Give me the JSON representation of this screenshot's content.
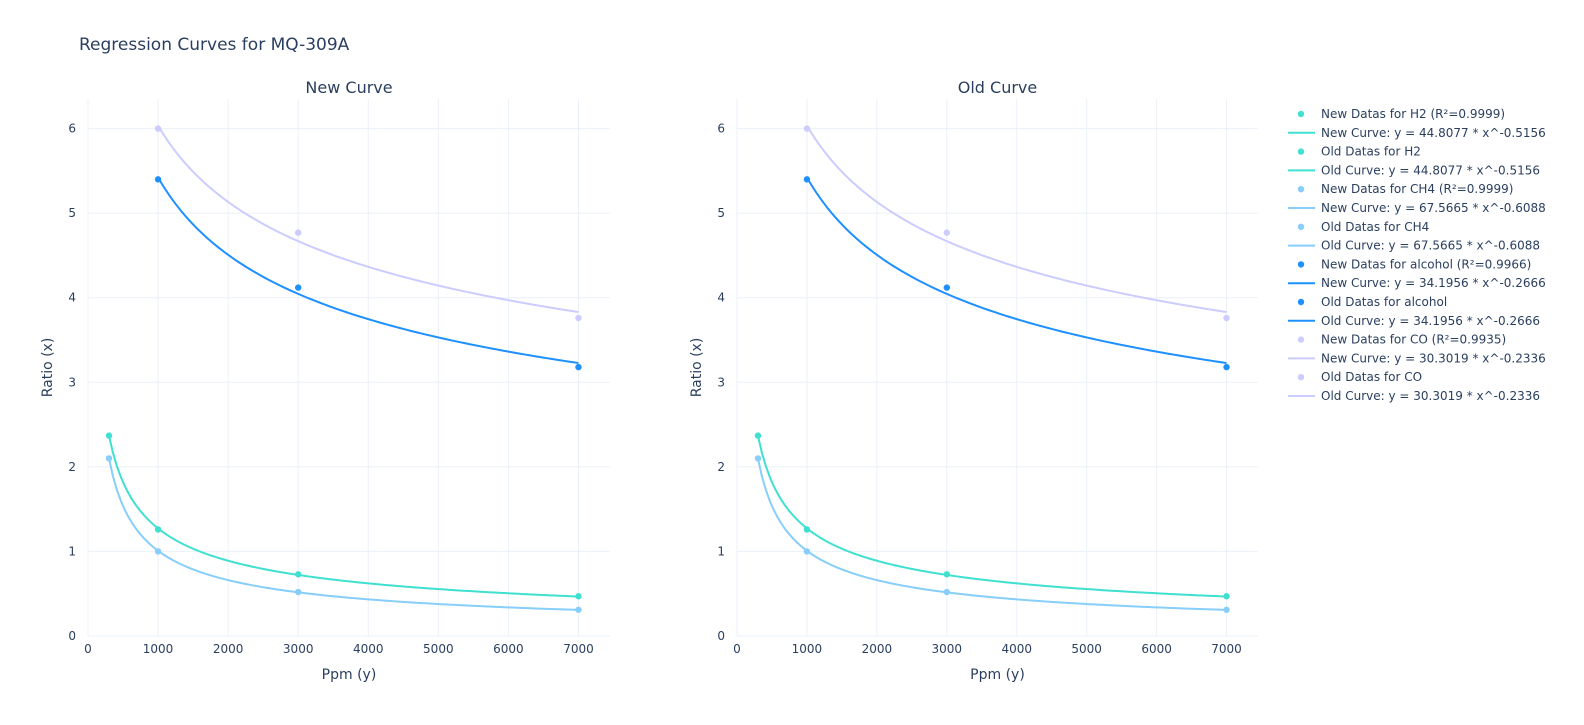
{
  "figure": {
    "title": "Regression Curves for MQ-309A"
  },
  "colors": {
    "H2": "#40e0d0",
    "CH4": "#87cefa",
    "alcohol": "#1e90ff",
    "CO": "#ccccff"
  },
  "chart_data": {
    "type": "scatter",
    "panels": [
      {
        "title": "New Curve",
        "xlabel": "Ppm (y)",
        "ylabel": "Ratio (x)",
        "xlim": [
          0,
          7450
        ],
        "ylim": [
          0,
          6.35
        ],
        "xticks": [
          0,
          1000,
          2000,
          3000,
          4000,
          5000,
          6000,
          7000
        ],
        "yticks": [
          0,
          1,
          2,
          3,
          4,
          5,
          6
        ],
        "grid": true
      },
      {
        "title": "Old Curve",
        "xlabel": "Ppm (y)",
        "ylabel": "Ratio (x)",
        "xlim": [
          0,
          7450
        ],
        "ylim": [
          0,
          6.35
        ],
        "xticks": [
          0,
          1000,
          2000,
          3000,
          4000,
          5000,
          6000,
          7000
        ],
        "yticks": [
          0,
          1,
          2,
          3,
          4,
          5,
          6
        ],
        "grid": true
      }
    ],
    "series": [
      {
        "gas": "H2",
        "points": [
          [
            300,
            2.37
          ],
          [
            1000,
            1.26
          ],
          [
            3000,
            0.73
          ],
          [
            7000,
            0.47
          ]
        ],
        "curve": {
          "a": 44.8077,
          "b": -0.5156,
          "x_range": [
            300,
            7000
          ]
        }
      },
      {
        "gas": "CH4",
        "points": [
          [
            300,
            2.1
          ],
          [
            1000,
            1.0
          ],
          [
            3000,
            0.52
          ],
          [
            7000,
            0.31
          ]
        ],
        "curve": {
          "a": 67.5665,
          "b": -0.6088,
          "x_range": [
            300,
            7000
          ]
        }
      },
      {
        "gas": "alcohol",
        "points": [
          [
            1000,
            5.4
          ],
          [
            3000,
            4.12
          ],
          [
            7000,
            3.18
          ]
        ],
        "curve": {
          "a": 34.1956,
          "b": -0.2666,
          "x_range": [
            1000,
            7000
          ]
        }
      },
      {
        "gas": "CO",
        "points": [
          [
            1000,
            6.0
          ],
          [
            3000,
            4.77
          ],
          [
            7000,
            3.76
          ]
        ],
        "curve": {
          "a": 30.3019,
          "b": -0.2336,
          "x_range": [
            1000,
            7000
          ]
        }
      }
    ],
    "legend": {
      "position": "right",
      "items": [
        {
          "type": "marker",
          "gas": "H2",
          "label": "New Datas for H2 (R²=0.9999)"
        },
        {
          "type": "line",
          "gas": "H2",
          "label": "New Curve: y = 44.8077 * x^-0.5156"
        },
        {
          "type": "marker",
          "gas": "H2",
          "label": "Old Datas for H2"
        },
        {
          "type": "line",
          "gas": "H2",
          "label": "Old Curve: y = 44.8077 * x^-0.5156"
        },
        {
          "type": "marker",
          "gas": "CH4",
          "label": "New Datas for CH4 (R²=0.9999)"
        },
        {
          "type": "line",
          "gas": "CH4",
          "label": "New Curve: y = 67.5665 * x^-0.6088"
        },
        {
          "type": "marker",
          "gas": "CH4",
          "label": "Old Datas for CH4"
        },
        {
          "type": "line",
          "gas": "CH4",
          "label": "Old Curve: y = 67.5665 * x^-0.6088"
        },
        {
          "type": "marker",
          "gas": "alcohol",
          "label": "New Datas for alcohol (R²=0.9966)"
        },
        {
          "type": "line",
          "gas": "alcohol",
          "label": "New Curve: y = 34.1956 * x^-0.2666"
        },
        {
          "type": "marker",
          "gas": "alcohol",
          "label": "Old Datas for alcohol"
        },
        {
          "type": "line",
          "gas": "alcohol",
          "label": "Old Curve: y = 34.1956 * x^-0.2666"
        },
        {
          "type": "marker",
          "gas": "CO",
          "label": "New Datas for CO (R²=0.9935)"
        },
        {
          "type": "line",
          "gas": "CO",
          "label": "New Curve: y = 30.3019 * x^-0.2336"
        },
        {
          "type": "marker",
          "gas": "CO",
          "label": "Old Datas for CO"
        },
        {
          "type": "line",
          "gas": "CO",
          "label": "Old Curve: y = 30.3019 * x^-0.2336"
        }
      ]
    }
  }
}
